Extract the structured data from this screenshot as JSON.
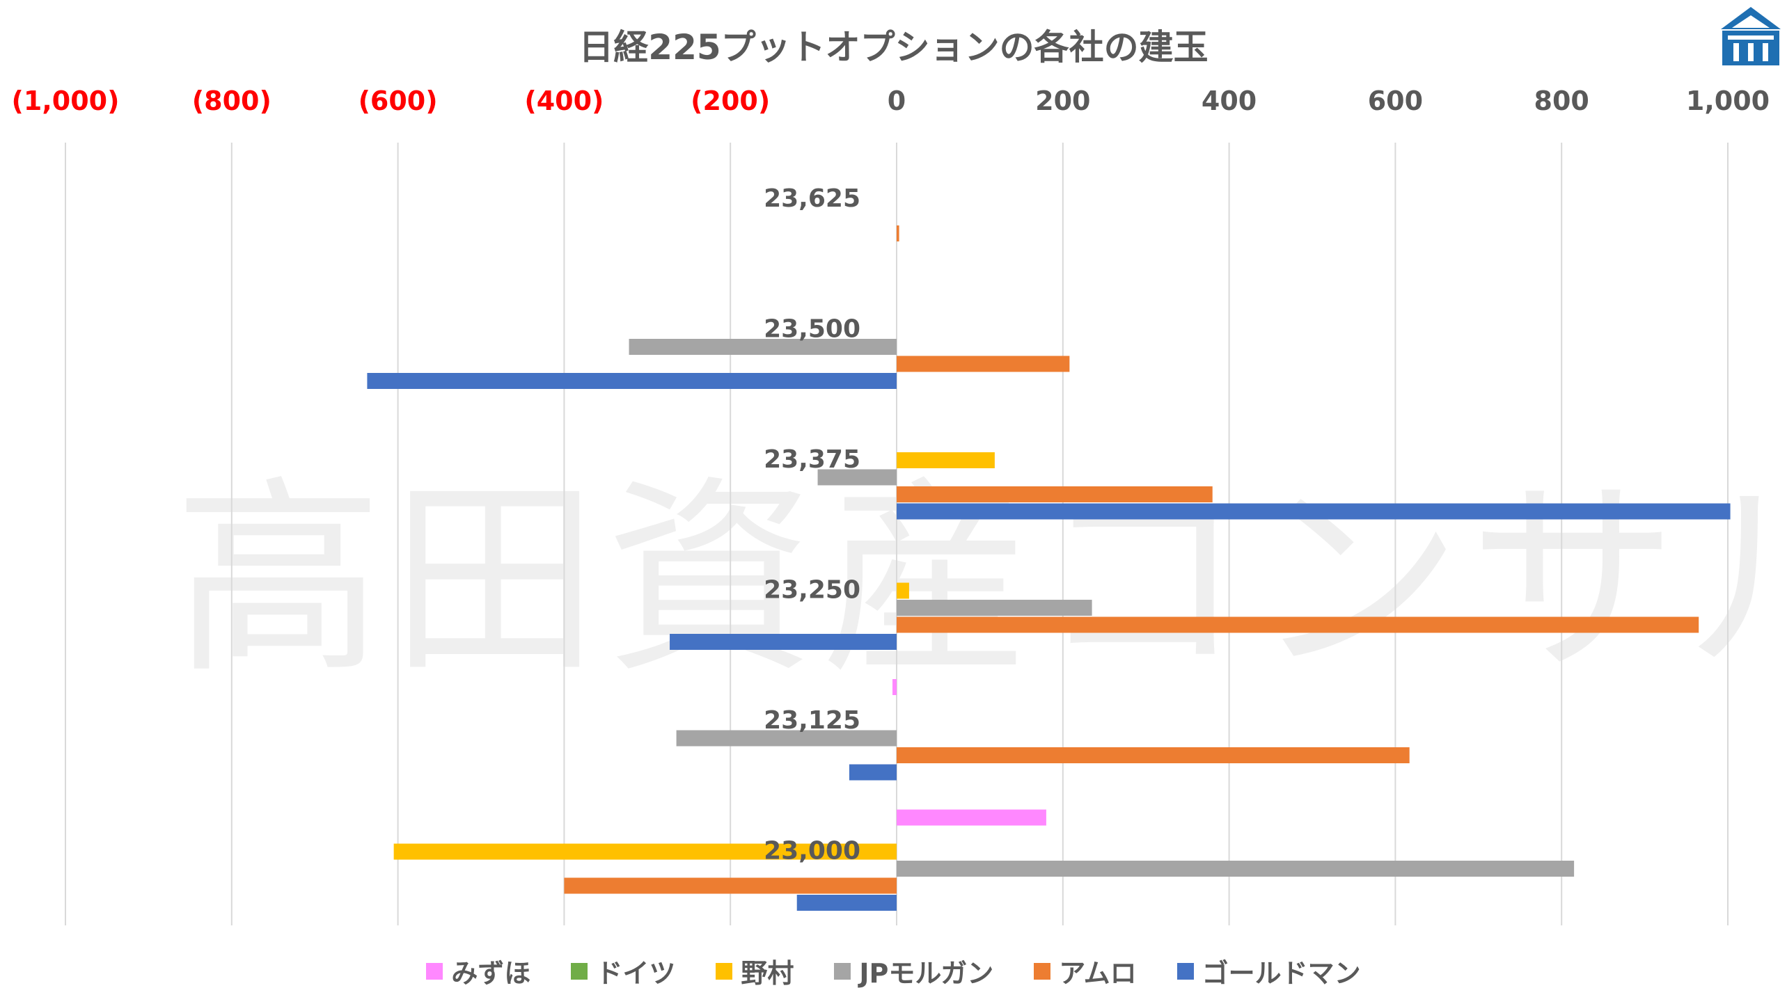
{
  "chart_data": {
    "type": "bar",
    "orientation": "horizontal",
    "title": "日経225プットオプションの各社の建玉",
    "categories": [
      "23,625",
      "23,500",
      "23,375",
      "23,250",
      "23,125",
      "23,000"
    ],
    "xlim": [
      -1000,
      1000
    ],
    "x_ticks": [
      {
        "value": -1000,
        "label": "(1,000)"
      },
      {
        "value": -800,
        "label": "(800)"
      },
      {
        "value": -600,
        "label": "(600)"
      },
      {
        "value": -400,
        "label": "(400)"
      },
      {
        "value": -200,
        "label": "(200)"
      },
      {
        "value": 0,
        "label": "0"
      },
      {
        "value": 200,
        "label": "200"
      },
      {
        "value": 400,
        "label": "400"
      },
      {
        "value": 600,
        "label": "600"
      },
      {
        "value": 800,
        "label": "800"
      },
      {
        "value": 1000,
        "label": "1,000"
      }
    ],
    "negative_tick_color": "#FF0000",
    "positive_tick_color": "#595959",
    "grid": true,
    "legend_position": "bottom",
    "series": [
      {
        "name": "みずほ",
        "color": "#FF88FF",
        "values": [
          0,
          0,
          0,
          0,
          -5,
          180
        ]
      },
      {
        "name": "ドイツ",
        "color": "#70AD47",
        "values": [
          0,
          0,
          0,
          0,
          0,
          0
        ]
      },
      {
        "name": "野村",
        "color": "#FFC000",
        "values": [
          0,
          0,
          118,
          15,
          0,
          -605
        ]
      },
      {
        "name": "JPモルガン",
        "color": "#A5A5A5",
        "values": [
          0,
          -322,
          -95,
          235,
          -265,
          815
        ]
      },
      {
        "name": "アムロ",
        "color": "#ED7D31",
        "values": [
          3,
          208,
          380,
          965,
          617,
          -400
        ]
      },
      {
        "name": "ゴールドマン",
        "color": "#4472C4",
        "values": [
          0,
          -637,
          1003,
          -273,
          -57,
          -120
        ]
      }
    ]
  },
  "watermark": "高田資産コンサル"
}
